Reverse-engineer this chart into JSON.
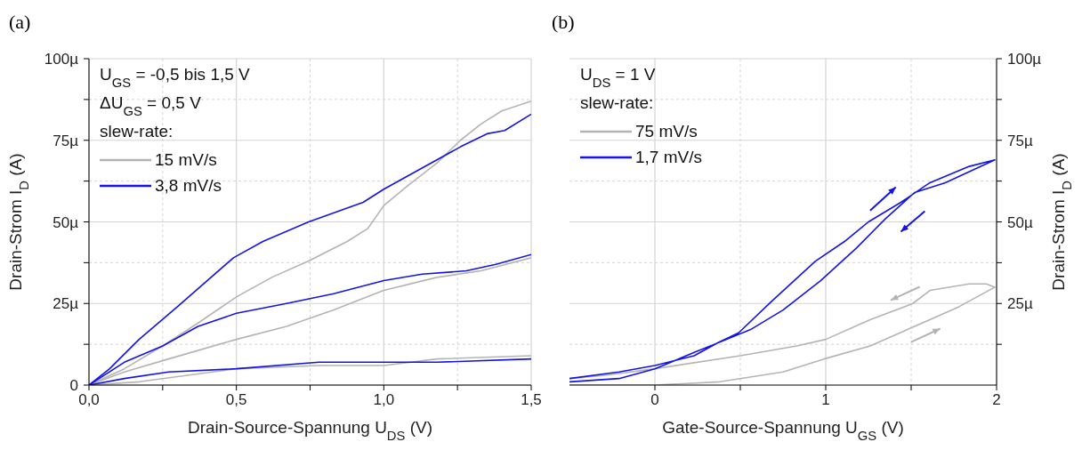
{
  "chart_data": [
    {
      "type": "line",
      "title": "(a)",
      "xlabel": "Drain-Source-Spannung U$_{DS}$ (V)",
      "ylabel": "Drain-Strom I$_{D}$ (A)",
      "annotations": [
        "U$_{GS}$ = -0,5 bis 1,5 V",
        "ΔU$_{GS}$ = 0,5 V",
        "slew-rate:"
      ],
      "legend": "top left",
      "grid": true,
      "xlim": [
        0,
        1.5
      ],
      "xticks": [
        {
          "value": 0,
          "label": "0,0"
        },
        {
          "value": 0.25,
          "label": null
        },
        {
          "value": 0.5,
          "label": "0,5"
        },
        {
          "value": 0.75,
          "label": null
        },
        {
          "value": 1,
          "label": "1,0"
        },
        {
          "value": 1.25,
          "label": null
        },
        {
          "value": 1.5,
          "label": "1,5"
        }
      ],
      "ylim": [
        0,
        100
      ],
      "yticks": [
        0,
        {
          "value": 12.5,
          "label": null
        },
        {
          "value": 25,
          "label": "25µ"
        },
        {
          "value": 37.5,
          "label": null
        },
        {
          "value": 50,
          "label": "50µ"
        },
        {
          "value": 62.5,
          "label": null
        },
        {
          "value": 75,
          "label": "75µ"
        },
        {
          "value": 87.5,
          "label": null
        },
        {
          "value": 100,
          "label": "100µ"
        }
      ],
      "series": [
        {
          "name": "15 mV/s",
          "color": "#b4b4b4",
          "x": [
            0,
            0.12,
            0.25,
            0.37,
            0.5,
            0.62,
            0.745,
            0.876,
            0.946,
            1.0,
            1.08,
            1.18,
            1.26,
            1.33,
            1.4,
            1.5
          ],
          "values": [
            0,
            5,
            12,
            19,
            27,
            33,
            38,
            44,
            48,
            55,
            61,
            68,
            75,
            80,
            84,
            87
          ]
        },
        {
          "color": "#b4b4b4",
          "x": [
            0,
            0.12,
            0.27,
            0.5,
            0.67,
            0.83,
            1.0,
            1.18,
            1.33,
            1.5
          ],
          "values": [
            0,
            4,
            8,
            14,
            18,
            23,
            29,
            33,
            35,
            39
          ]
        },
        {
          "color": "#b4b4b4",
          "x": [
            0,
            0.17,
            0.5,
            0.78,
            1.0,
            1.18,
            1.5
          ],
          "values": [
            0,
            1,
            5,
            6,
            6,
            8,
            9
          ]
        },
        {
          "name": "3,8 mV/s",
          "color": "#1414e6",
          "x": [
            0,
            0.07,
            0.17,
            0.3,
            0.49,
            0.59,
            0.745,
            0.93,
            1.0,
            1.18,
            1.26,
            1.35,
            1.41,
            1.5
          ],
          "values": [
            0,
            5,
            14,
            24,
            39,
            44,
            50,
            56,
            60,
            69,
            73,
            77,
            78,
            83
          ]
        },
        {
          "color": "#1414e6",
          "x": [
            0,
            0.12,
            0.25,
            0.37,
            0.5,
            0.67,
            0.83,
            1.0,
            1.13,
            1.28,
            1.38,
            1.5
          ],
          "values": [
            0,
            7,
            12,
            18,
            22,
            25,
            28,
            32,
            34,
            35,
            37,
            40
          ]
        },
        {
          "color": "#1414e6",
          "x": [
            0,
            0.12,
            0.27,
            0.5,
            0.78,
            1.0,
            1.18,
            1.5
          ],
          "values": [
            0,
            2,
            4,
            5,
            7,
            7,
            7,
            8
          ]
        }
      ]
    },
    {
      "type": "line",
      "title": "(b)",
      "xlabel": "Gate-Source-Spannung U$_{GS}$ (V)",
      "y2label": "Drain-Strom I$_{D}$ (A)",
      "annotations": [
        "U$_{DS}$ = 1 V",
        "slew-rate:"
      ],
      "legend": "top left",
      "grid": true,
      "xlim": [
        -0.5,
        2
      ],
      "xticks": [
        0,
        {
          "value": 0.5,
          "label": null
        },
        1,
        {
          "value": 1.5,
          "label": null
        },
        2
      ],
      "y2lim": [
        0,
        100
      ],
      "y2ticks": [
        {
          "value": 12.5,
          "label": null
        },
        {
          "value": 25,
          "label": "25µ"
        },
        {
          "value": 37.5,
          "label": null
        },
        {
          "value": 50,
          "label": "50µ"
        },
        {
          "value": 62.5,
          "label": null
        },
        {
          "value": 75,
          "label": "75µ"
        },
        {
          "value": 87.5,
          "label": null
        },
        {
          "value": 100,
          "label": "100µ"
        }
      ],
      "series": [
        {
          "name": "75 mV/s",
          "color": "#b4b4b4",
          "axis": "y2",
          "x": [
            -0.5,
            0,
            0.38,
            0.75,
            0.99,
            1.26,
            1.52,
            1.78,
            1.99,
            1.94,
            1.84,
            1.61,
            1.51,
            1.26,
            1.0,
            0.83,
            0.5,
            0,
            -0.29,
            -0.5
          ],
          "values": [
            0,
            0,
            1,
            4,
            8,
            12,
            18,
            24,
            30,
            31,
            31,
            29,
            25,
            20,
            14,
            12,
            9,
            5,
            3,
            2
          ]
        },
        {
          "name": "1,7 mV/s",
          "color": "#1414e6",
          "axis": "y2",
          "x": [
            -0.5,
            -0.21,
            0,
            0.23,
            0.37,
            0.49,
            0.69,
            0.94,
            1.11,
            1.25,
            1.44,
            1.61,
            1.84,
            1.99,
            1.7,
            1.52,
            1.35,
            1.18,
            0.97,
            0.75,
            0.56,
            0.42,
            0.23,
            0,
            -0.21,
            -0.5
          ],
          "values": [
            2,
            4,
            6,
            9,
            13,
            16,
            26,
            38,
            44,
            50,
            56,
            62,
            67,
            69,
            62,
            59,
            51,
            42,
            32,
            23,
            17,
            14,
            10,
            5,
            2,
            1
          ]
        }
      ]
    }
  ]
}
